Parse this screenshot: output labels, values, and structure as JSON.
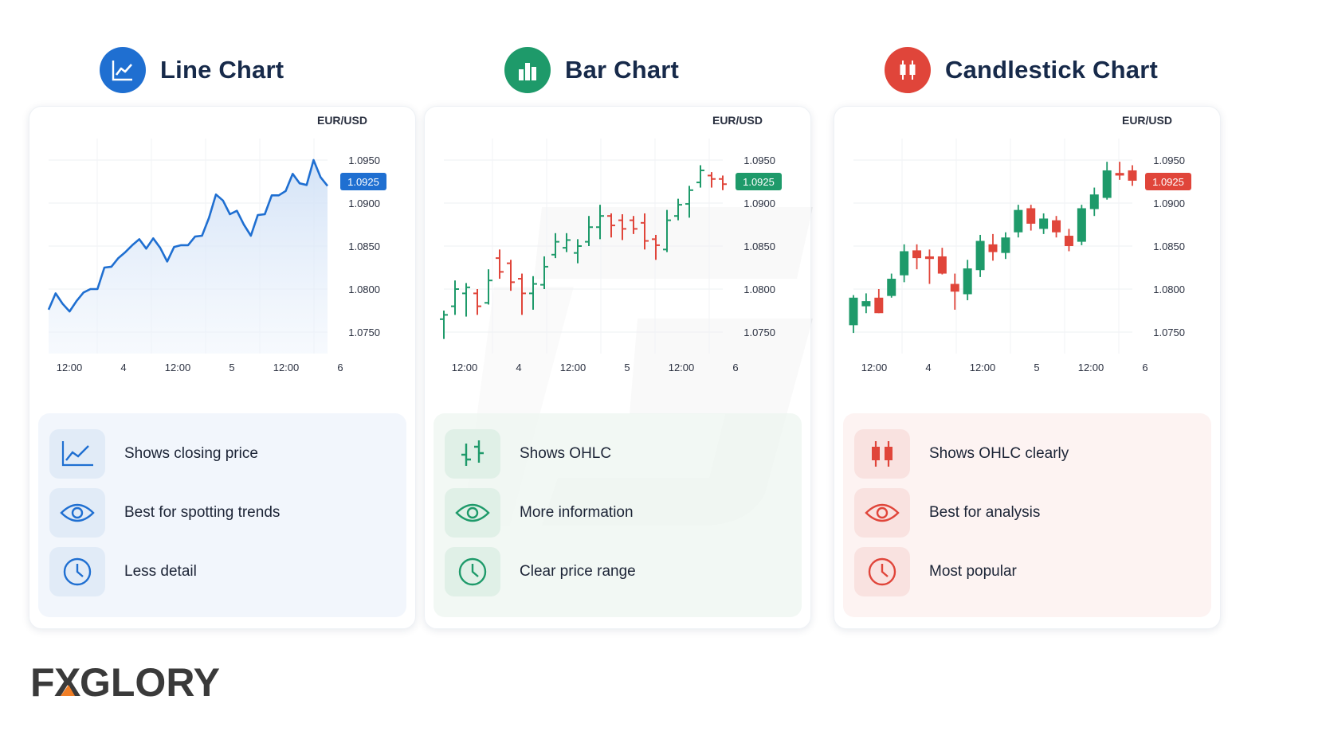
{
  "panels": [
    {
      "title": "Line Chart",
      "features": [
        "Shows closing price",
        "Best for spotting trends",
        "Less detail"
      ]
    },
    {
      "title": "Bar Chart",
      "features": [
        "Shows OHLC",
        "More information",
        "Clear price range"
      ]
    },
    {
      "title": "Candlestick Chart",
      "features": [
        "Shows OHLC clearly",
        "Best for analysis",
        "Most popular"
      ]
    }
  ],
  "colors": {
    "line_blue": "#1f6fd1",
    "bull_green": "#1e9a6a",
    "bear_red": "#e0453a",
    "title_navy": "#172a4a"
  },
  "logo_text": {
    "part1": "F",
    "part2": "X",
    "part3": "GLORY"
  },
  "chart_data": [
    {
      "type": "line",
      "pair": "EUR/USD",
      "current_price_label": "1.0925",
      "ylim": [
        1.0725,
        1.0975
      ],
      "yticks": [
        "1.0950",
        "1.0900",
        "1.0850",
        "1.0800",
        "1.0750"
      ],
      "xticks": [
        "12:00",
        "4",
        "12:00",
        "5",
        "12:00",
        "6"
      ],
      "values": [
        1.0776,
        1.0795,
        1.0783,
        1.0774,
        1.0786,
        1.0796,
        1.08,
        1.08,
        1.0825,
        1.0826,
        1.0836,
        1.0843,
        1.0851,
        1.0858,
        1.0847,
        1.0859,
        1.0848,
        1.0832,
        1.0849,
        1.0851,
        1.0851,
        1.0861,
        1.0862,
        1.0883,
        1.091,
        1.0903,
        1.0887,
        1.0891,
        1.0875,
        1.0862,
        1.0886,
        1.0887,
        1.0909,
        1.0909,
        1.0914,
        1.0934,
        1.0923,
        1.0921,
        1.095,
        1.093,
        1.092
      ]
    },
    {
      "type": "ohlc",
      "pair": "EUR/USD",
      "current_price_label": "1.0925",
      "ylim": [
        1.0725,
        1.0975
      ],
      "yticks": [
        "1.0950",
        "1.0900",
        "1.0850",
        "1.0800",
        "1.0750"
      ],
      "xticks": [
        "12:00",
        "4",
        "12:00",
        "5",
        "12:00",
        "6"
      ],
      "bars": [
        {
          "o": 1.0765,
          "h": 1.0775,
          "l": 1.0742,
          "c": 1.077
        },
        {
          "o": 1.078,
          "h": 1.081,
          "l": 1.077,
          "c": 1.08
        },
        {
          "o": 1.0795,
          "h": 1.0807,
          "l": 1.0768,
          "c": 1.0802
        },
        {
          "o": 1.0795,
          "h": 1.08,
          "l": 1.077,
          "c": 1.078
        },
        {
          "o": 1.0784,
          "h": 1.0823,
          "l": 1.0782,
          "c": 1.081
        },
        {
          "o": 1.0836,
          "h": 1.0846,
          "l": 1.0812,
          "c": 1.082
        },
        {
          "o": 1.083,
          "h": 1.0834,
          "l": 1.0798,
          "c": 1.0808
        },
        {
          "o": 1.0812,
          "h": 1.0818,
          "l": 1.077,
          "c": 1.0795
        },
        {
          "o": 1.0795,
          "h": 1.0815,
          "l": 1.0776,
          "c": 1.0806
        },
        {
          "o": 1.0805,
          "h": 1.0838,
          "l": 1.08,
          "c": 1.0826
        },
        {
          "o": 1.084,
          "h": 1.0865,
          "l": 1.0836,
          "c": 1.0855
        },
        {
          "o": 1.0848,
          "h": 1.0865,
          "l": 1.0843,
          "c": 1.0857
        },
        {
          "o": 1.0842,
          "h": 1.0858,
          "l": 1.083,
          "c": 1.085
        },
        {
          "o": 1.0855,
          "h": 1.0885,
          "l": 1.085,
          "c": 1.0872
        },
        {
          "o": 1.0872,
          "h": 1.0898,
          "l": 1.0858,
          "c": 1.0885
        },
        {
          "o": 1.0885,
          "h": 1.0888,
          "l": 1.086,
          "c": 1.0874
        },
        {
          "o": 1.088,
          "h": 1.0887,
          "l": 1.0857,
          "c": 1.087
        },
        {
          "o": 1.088,
          "h": 1.0885,
          "l": 1.0864,
          "c": 1.087
        },
        {
          "o": 1.0877,
          "h": 1.0888,
          "l": 1.0846,
          "c": 1.0856
        },
        {
          "o": 1.0858,
          "h": 1.0863,
          "l": 1.0834,
          "c": 1.0851
        },
        {
          "o": 1.0846,
          "h": 1.0892,
          "l": 1.0843,
          "c": 1.088
        },
        {
          "o": 1.0885,
          "h": 1.0905,
          "l": 1.088,
          "c": 1.0898
        },
        {
          "o": 1.0899,
          "h": 1.092,
          "l": 1.0883,
          "c": 1.0915
        },
        {
          "o": 1.0924,
          "h": 1.0944,
          "l": 1.0918,
          "c": 1.0938
        },
        {
          "o": 1.0932,
          "h": 1.0936,
          "l": 1.0918,
          "c": 1.0928
        },
        {
          "o": 1.0928,
          "h": 1.0932,
          "l": 1.0915,
          "c": 1.0922
        }
      ]
    },
    {
      "type": "candlestick",
      "pair": "EUR/USD",
      "current_price_label": "1.0925",
      "ylim": [
        1.0725,
        1.0975
      ],
      "yticks": [
        "1.0950",
        "1.0900",
        "1.0850",
        "1.0800",
        "1.0750"
      ],
      "xticks": [
        "12:00",
        "4",
        "12:00",
        "5",
        "12:00",
        "6"
      ],
      "candles": [
        {
          "o": 1.0758,
          "h": 1.0793,
          "l": 1.0749,
          "c": 1.079
        },
        {
          "o": 1.078,
          "h": 1.0795,
          "l": 1.0772,
          "c": 1.0786
        },
        {
          "o": 1.079,
          "h": 1.08,
          "l": 1.0772,
          "c": 1.0772
        },
        {
          "o": 1.0792,
          "h": 1.0818,
          "l": 1.079,
          "c": 1.0812
        },
        {
          "o": 1.0816,
          "h": 1.0852,
          "l": 1.0808,
          "c": 1.0844
        },
        {
          "o": 1.0845,
          "h": 1.0852,
          "l": 1.0823,
          "c": 1.0836
        },
        {
          "o": 1.0838,
          "h": 1.0846,
          "l": 1.0806,
          "c": 1.0835
        },
        {
          "o": 1.0838,
          "h": 1.0848,
          "l": 1.0817,
          "c": 1.0818
        },
        {
          "o": 1.0806,
          "h": 1.0818,
          "l": 1.0776,
          "c": 1.0797
        },
        {
          "o": 1.0794,
          "h": 1.0834,
          "l": 1.0787,
          "c": 1.0824
        },
        {
          "o": 1.0822,
          "h": 1.0863,
          "l": 1.0814,
          "c": 1.0856
        },
        {
          "o": 1.0852,
          "h": 1.0864,
          "l": 1.0833,
          "c": 1.0843
        },
        {
          "o": 1.0842,
          "h": 1.0866,
          "l": 1.0835,
          "c": 1.086
        },
        {
          "o": 1.0866,
          "h": 1.0898,
          "l": 1.086,
          "c": 1.0892
        },
        {
          "o": 1.0894,
          "h": 1.0898,
          "l": 1.0868,
          "c": 1.0876
        },
        {
          "o": 1.087,
          "h": 1.0888,
          "l": 1.0864,
          "c": 1.0882
        },
        {
          "o": 1.088,
          "h": 1.0885,
          "l": 1.086,
          "c": 1.0866
        },
        {
          "o": 1.0862,
          "h": 1.087,
          "l": 1.0844,
          "c": 1.085
        },
        {
          "o": 1.0855,
          "h": 1.0898,
          "l": 1.0851,
          "c": 1.0894
        },
        {
          "o": 1.0893,
          "h": 1.0918,
          "l": 1.0885,
          "c": 1.091
        },
        {
          "o": 1.0906,
          "h": 1.0948,
          "l": 1.0904,
          "c": 1.0938
        },
        {
          "o": 1.0935,
          "h": 1.0948,
          "l": 1.0927,
          "c": 1.0932
        },
        {
          "o": 1.0938,
          "h": 1.0944,
          "l": 1.092,
          "c": 1.0926
        }
      ]
    }
  ]
}
